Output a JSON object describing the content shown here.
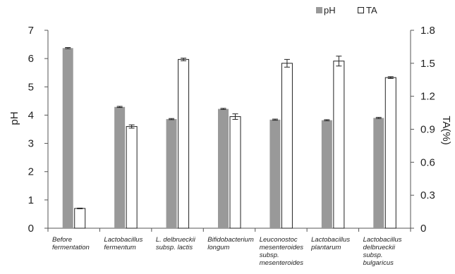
{
  "chart_data": {
    "type": "bar",
    "categories": [
      [
        "Before",
        "fermentation"
      ],
      [
        "Lactobacillus",
        "fermentum"
      ],
      [
        "L. delbrueckii",
        "subsp. lactis"
      ],
      [
        "Bifidobacterium",
        "longum"
      ],
      [
        "Leuconostoc",
        "mesenteroides",
        "subsp.",
        "mesenteroides"
      ],
      [
        "Lactobacillus",
        "plantarum"
      ],
      [
        "Lactobacillus",
        "delbrueckii",
        "subsp.",
        "bulgaricus"
      ]
    ],
    "series": [
      {
        "name": "pH",
        "axis": "left",
        "color": "#999999",
        "values": [
          6.37,
          4.29,
          3.86,
          4.22,
          3.84,
          3.82,
          3.9
        ],
        "errors": [
          0.02,
          0.02,
          0.02,
          0.02,
          0.02,
          0.02,
          0.02
        ]
      },
      {
        "name": "TA",
        "axis": "right",
        "color": "#ffffff",
        "values": [
          0.18,
          0.925,
          1.535,
          1.015,
          1.5,
          1.52,
          1.37
        ],
        "errors": [
          0.003,
          0.015,
          0.012,
          0.025,
          0.035,
          0.045,
          0.008
        ]
      }
    ],
    "ylabel": "pH",
    "ylim": [
      0,
      7
    ],
    "yticks": [
      "0",
      "1",
      "2",
      "3",
      "4",
      "5",
      "6",
      "7"
    ],
    "y2label": "TA(%)",
    "y2lim": [
      0,
      1.8
    ],
    "y2ticks": [
      "0",
      "0.3",
      "0.6",
      "0.9",
      "1.2",
      "1.5",
      "1.8"
    ],
    "grid": false,
    "legend_position": "top-right"
  }
}
